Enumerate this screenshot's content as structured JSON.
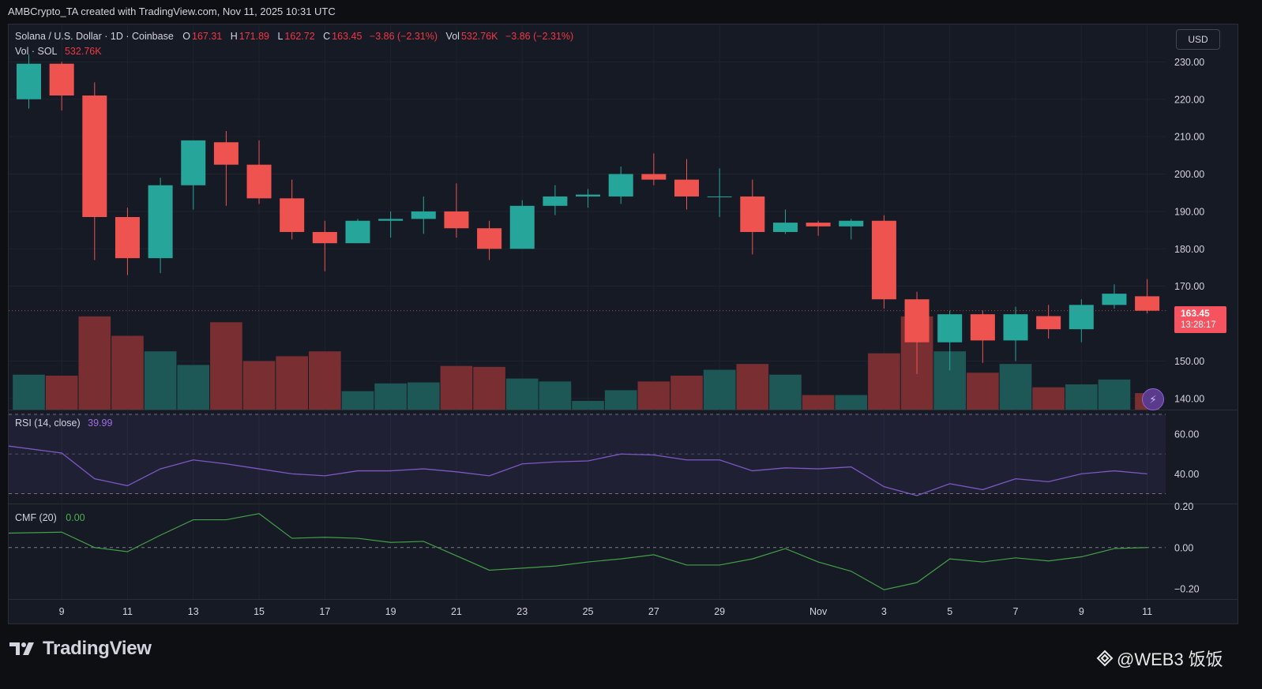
{
  "caption": "AMBCrypto_TA created with TradingView.com, Nov 11, 2025 10:31 UTC",
  "legend": {
    "symbol": "Solana / U.S. Dollar · 1D · Coinbase",
    "o_label": "O",
    "o_val": "167.31",
    "h_label": "H",
    "h_val": "171.89",
    "l_label": "L",
    "l_val": "162.72",
    "c_label": "C",
    "c_val": "163.45",
    "change": "−3.86 (−2.31%)",
    "vol_label": "Vol",
    "vol_val": "532.76K",
    "vol_change": "−3.86 (−2.31%)",
    "vol_line_label": "Vol · SOL",
    "vol_line_val": "532.76K",
    "rsi_label": "RSI (14, close)",
    "rsi_val": "39.99",
    "cmf_label": "CMF (20)",
    "cmf_val": "0.00"
  },
  "currency_button": "USD",
  "price_tag": {
    "price": "163.45",
    "countdown": "13:28:17"
  },
  "branding": {
    "logo_text": "TradingView",
    "watermark": "@WEB3 饭饭"
  },
  "colors": {
    "up": "#26a69a",
    "down": "#ef5350",
    "vol_up": "#1f5c59",
    "vol_down": "#7e2f33",
    "rsi": "#7e57c2",
    "cmf": "#43a047",
    "bg": "#161a25"
  },
  "icons": {
    "logo": "tradingview-logo-icon",
    "watermark": "binance-diamond-icon",
    "flash": "flash-icon"
  },
  "chart_data": [
    {
      "type": "candlestick",
      "title": "Solana / U.S. Dollar · 1D · Coinbase",
      "ylim": [
        137,
        240
      ],
      "y_ticks": [
        "230.00",
        "220.00",
        "210.00",
        "200.00",
        "190.00",
        "180.00",
        "170.00",
        "150.00",
        "140.00"
      ],
      "y_tick_values": [
        230,
        220,
        210,
        200,
        190,
        180,
        170,
        150,
        140
      ],
      "x_ticks": [
        "9",
        "11",
        "13",
        "15",
        "17",
        "19",
        "21",
        "23",
        "25",
        "27",
        "29",
        "Nov",
        "3",
        "5",
        "7",
        "9",
        "11"
      ],
      "x_tick_index": [
        1,
        3,
        5,
        7,
        9,
        11,
        13,
        15,
        17,
        19,
        21,
        24,
        26,
        28,
        30,
        32,
        34
      ],
      "dates": [
        "Oct 8",
        "Oct 9",
        "Oct 10",
        "Oct 11",
        "Oct 12",
        "Oct 13",
        "Oct 14",
        "Oct 15",
        "Oct 16",
        "Oct 17",
        "Oct 18",
        "Oct 19",
        "Oct 20",
        "Oct 21",
        "Oct 22",
        "Oct 23",
        "Oct 24",
        "Oct 25",
        "Oct 26",
        "Oct 27",
        "Oct 28",
        "Oct 29",
        "Oct 30",
        "Oct 31",
        "Nov 1",
        "Nov 2",
        "Nov 3",
        "Nov 4",
        "Nov 5",
        "Nov 6",
        "Nov 7",
        "Nov 8",
        "Nov 9",
        "Nov 10",
        "Nov 11"
      ],
      "ohlc": [
        [
          220.0,
          232.0,
          217.5,
          229.5
        ],
        [
          229.5,
          230.0,
          217.0,
          221.0
        ],
        [
          221.0,
          224.5,
          177.0,
          188.5
        ],
        [
          188.5,
          191.0,
          173.0,
          177.5
        ],
        [
          177.5,
          199.0,
          173.5,
          197.0
        ],
        [
          197.0,
          209.0,
          190.5,
          209.0
        ],
        [
          208.5,
          211.5,
          191.5,
          202.5
        ],
        [
          202.5,
          209.0,
          192.0,
          193.5
        ],
        [
          193.5,
          198.5,
          182.5,
          184.5
        ],
        [
          184.5,
          187.5,
          174.0,
          181.5
        ],
        [
          181.5,
          188.0,
          181.5,
          187.5
        ],
        [
          187.5,
          190.0,
          183.0,
          188.0
        ],
        [
          188.0,
          194.0,
          184.0,
          190.0
        ],
        [
          190.0,
          197.5,
          183.0,
          185.5
        ],
        [
          185.5,
          187.5,
          177.0,
          180.0
        ],
        [
          180.0,
          193.0,
          180.0,
          191.5
        ],
        [
          191.5,
          197.0,
          189.0,
          194.0
        ],
        [
          194.0,
          196.0,
          191.0,
          194.5
        ],
        [
          194.0,
          202.0,
          192.0,
          200.0
        ],
        [
          200.0,
          205.5,
          197.0,
          198.5
        ],
        [
          198.5,
          204.0,
          190.5,
          194.0
        ],
        [
          194.0,
          201.5,
          188.5,
          194.0
        ],
        [
          194.0,
          198.5,
          178.5,
          184.5
        ],
        [
          184.5,
          190.5,
          184.0,
          187.0
        ],
        [
          187.0,
          187.5,
          183.5,
          186.0
        ],
        [
          186.0,
          188.0,
          182.5,
          187.5
        ],
        [
          187.5,
          189.0,
          164.0,
          166.5
        ],
        [
          166.5,
          168.5,
          146.5,
          155.0
        ],
        [
          155.0,
          163.5,
          147.5,
          162.5
        ],
        [
          162.5,
          163.5,
          149.5,
          155.5
        ],
        [
          155.5,
          164.5,
          150.0,
          162.5
        ],
        [
          162.0,
          165.0,
          156.0,
          158.5
        ],
        [
          158.5,
          166.5,
          155.0,
          165.0
        ],
        [
          165.0,
          170.5,
          164.0,
          168.0
        ],
        [
          167.31,
          171.89,
          162.72,
          163.45
        ]
      ],
      "volume_label": "Vol · SOL",
      "volume_ylim": [
        0,
        1
      ],
      "volume_rel": [
        0.36,
        0.35,
        0.96,
        0.76,
        0.6,
        0.46,
        0.9,
        0.5,
        0.55,
        0.6,
        0.19,
        0.27,
        0.28,
        0.45,
        0.44,
        0.32,
        0.29,
        0.09,
        0.2,
        0.29,
        0.35,
        0.41,
        0.47,
        0.36,
        0.15,
        0.15,
        0.58,
        0.96,
        0.6,
        0.38,
        0.47,
        0.23,
        0.26,
        0.31,
        0.17
      ]
    },
    {
      "type": "line",
      "title": "RSI (14, close)",
      "ylim": [
        25,
        72
      ],
      "y_ticks": [
        "60.00",
        "40.00"
      ],
      "y_tick_values": [
        60,
        40
      ],
      "levels": [
        70,
        50,
        30
      ],
      "series": [
        {
          "values": [
            54.0,
            50.5,
            37.5,
            34.0,
            42.5,
            47.0,
            45.0,
            42.5,
            40.0,
            39.0,
            41.5,
            41.5,
            42.5,
            41.0,
            39.0,
            45.0,
            46.0,
            46.5,
            50.0,
            49.5,
            47.0,
            47.0,
            41.5,
            43.0,
            42.5,
            43.5,
            33.5,
            29.0,
            35.0,
            32.0,
            37.5,
            36.0,
            40.0,
            41.5,
            39.99
          ]
        }
      ]
    },
    {
      "type": "line",
      "title": "CMF (20)",
      "ylim": [
        -0.25,
        0.21
      ],
      "y_ticks": [
        "0.20",
        "0.00",
        "−0.20"
      ],
      "y_tick_values": [
        0.2,
        0.0,
        -0.2
      ],
      "levels": [
        0.0
      ],
      "series": [
        {
          "values": [
            0.07,
            0.075,
            0.0,
            -0.02,
            0.06,
            0.135,
            0.135,
            0.165,
            0.045,
            0.05,
            0.045,
            0.025,
            0.03,
            -0.04,
            -0.11,
            -0.1,
            -0.09,
            -0.07,
            -0.055,
            -0.035,
            -0.085,
            -0.085,
            -0.055,
            -0.005,
            -0.07,
            -0.115,
            -0.205,
            -0.17,
            -0.055,
            -0.07,
            -0.05,
            -0.065,
            -0.045,
            -0.005,
            0.0
          ]
        }
      ]
    }
  ]
}
